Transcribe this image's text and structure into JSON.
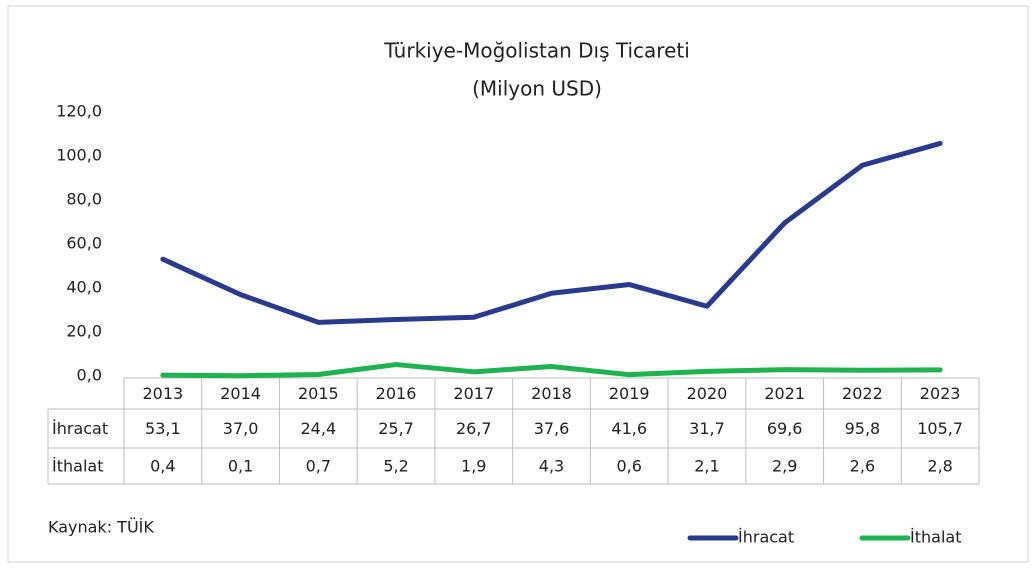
{
  "chart_data": {
    "type": "line",
    "title": "Türkiye-Moğolistan Dış Ticareti",
    "subtitle": "(Milyon USD)",
    "categories": [
      "2013",
      "2014",
      "2015",
      "2016",
      "2017",
      "2018",
      "2019",
      "2020",
      "2021",
      "2022",
      "2023"
    ],
    "series": [
      {
        "name": "İhracat",
        "color": "#2a3a8f",
        "values": [
          53.1,
          37.0,
          24.4,
          25.7,
          26.7,
          37.6,
          41.6,
          31.7,
          69.6,
          95.8,
          105.7
        ],
        "value_labels": [
          "53,1",
          "37,0",
          "24,4",
          "25,7",
          "26,7",
          "37,6",
          "41,6",
          "31,7",
          "69,6",
          "95,8",
          "105,7"
        ]
      },
      {
        "name": "İthalat",
        "color": "#1db34f",
        "values": [
          0.4,
          0.1,
          0.7,
          5.2,
          1.9,
          4.3,
          0.6,
          2.1,
          2.9,
          2.6,
          2.8
        ],
        "value_labels": [
          "0,4",
          "0,1",
          "0,7",
          "5,2",
          "1,9",
          "4,3",
          "0,6",
          "2,1",
          "2,9",
          "2,6",
          "2,8"
        ]
      }
    ],
    "ylim": [
      0,
      120
    ],
    "yticks": [
      {
        "value": 0,
        "label": "0,0"
      },
      {
        "value": 20,
        "label": "20,0"
      },
      {
        "value": 40,
        "label": "40,0"
      },
      {
        "value": 60,
        "label": "60,0"
      },
      {
        "value": 80,
        "label": "80,0"
      },
      {
        "value": 100,
        "label": "100,0"
      },
      {
        "value": 120,
        "label": "120,0"
      }
    ],
    "annotation": "Kaynak: TÜİK",
    "legend": "bottom-right"
  }
}
